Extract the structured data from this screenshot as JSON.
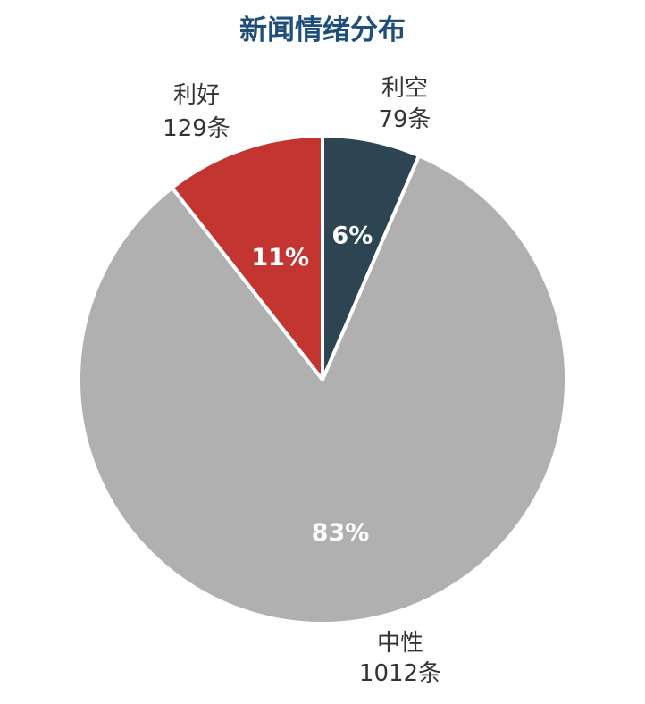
{
  "chart_data": {
    "type": "pie",
    "title": "新闻情绪分布",
    "slices": [
      {
        "name": "利空",
        "count": 79,
        "count_label": "79条",
        "percent_label": "6%",
        "color": "#2d4453"
      },
      {
        "name": "中性",
        "count": 1012,
        "count_label": "1012条",
        "percent_label": "83%",
        "color": "#b0b0b0"
      },
      {
        "name": "利好",
        "count": 129,
        "count_label": "129条",
        "percent_label": "11%",
        "color": "#c23531"
      }
    ]
  }
}
